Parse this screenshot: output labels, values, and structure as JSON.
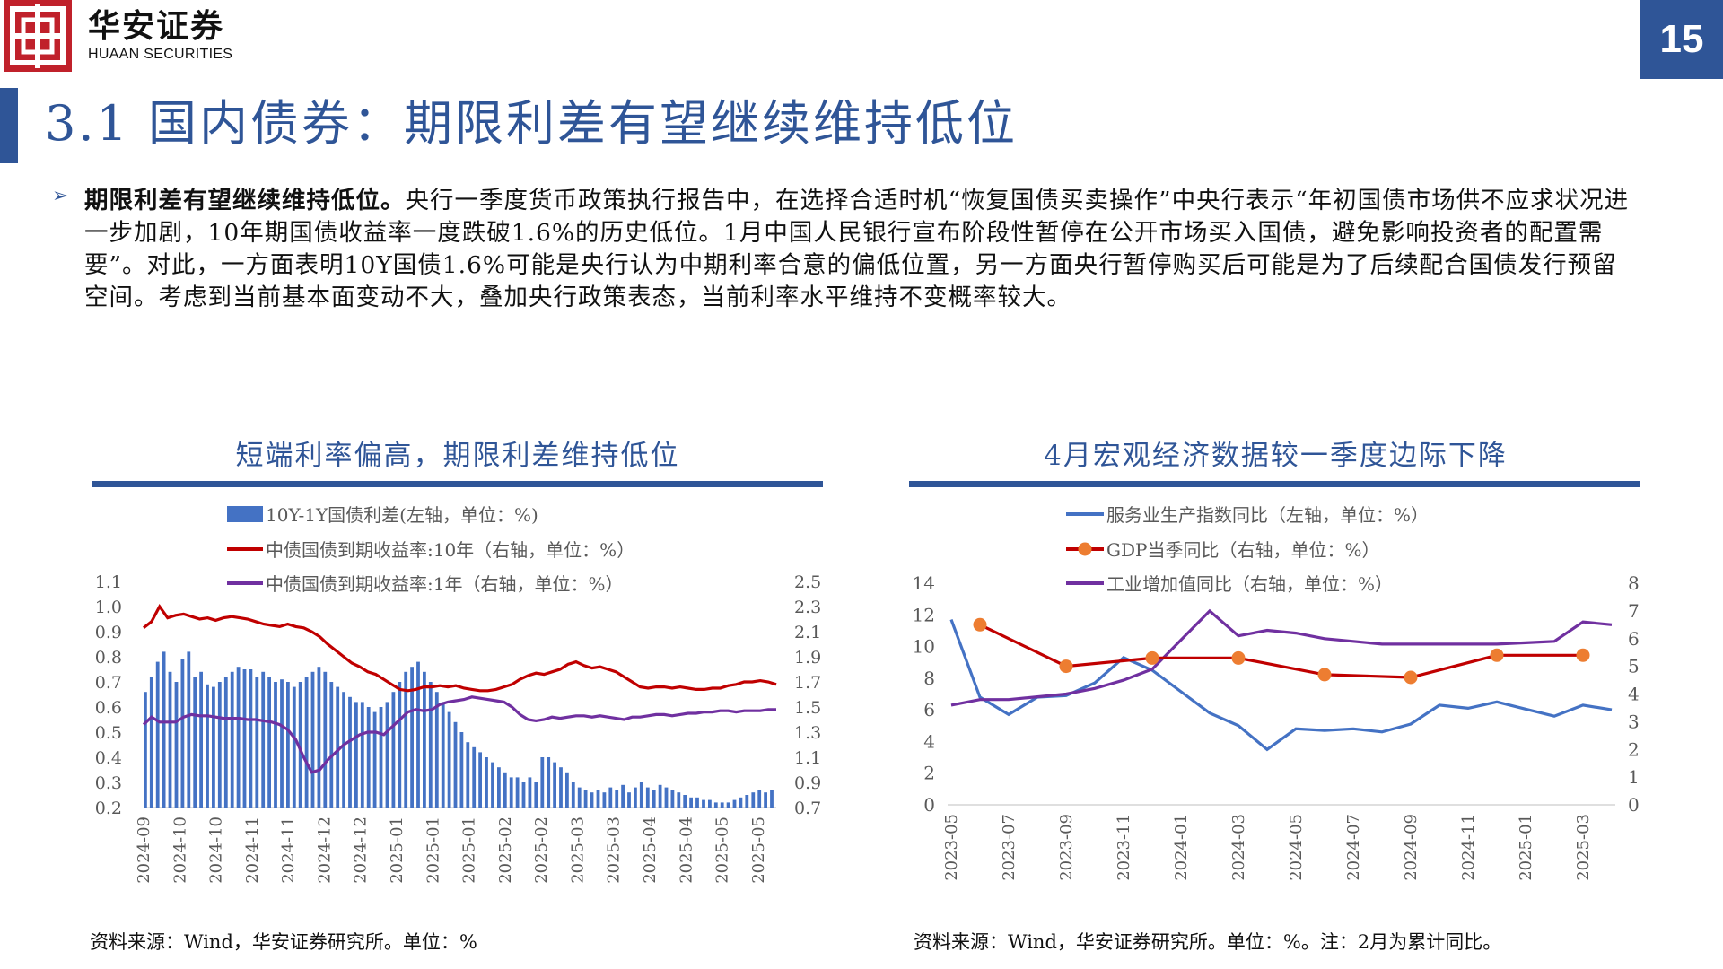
{
  "header": {
    "logo_cn": "华安证券",
    "logo_en": "HUAAN SECURITIES",
    "page_number": "15"
  },
  "title": "3.1 国内债券：期限利差有望继续维持低位",
  "body": {
    "lead": "期限利差有望继续维持低位。",
    "text": "央行一季度货币政策执行报告中，在选择合适时机“恢复国债买卖操作”中央行表示“年初国债市场供不应求状况进一步加剧，10年期国债收益率一度跌破1.6%的历史低位。1月中国人民银行宣布阶段性暂停在公开市场买入国债，避免影响投资者的配置需要”。对此，一方面表明10Y国债1.6%可能是央行认为中期利率合意的偏低位置，另一方面央行暂停购买后可能是为了后续配合国债发行预留空间。考虑到当前基本面变动不大，叠加央行政策表态，当前利率水平维持不变概率较大。"
  },
  "colors": {
    "brand_blue": "#2f5597",
    "brand_red": "#c0212b",
    "bar_blue": "#4472c4",
    "line_red": "#c00000",
    "line_purple": "#7030a0",
    "line_blue": "#4472c4",
    "marker_orange": "#ed7d31"
  },
  "chart_data": [
    {
      "type": "bar+line",
      "title": "短端利率偏高，期限利差维持低位",
      "source": "资料来源：Wind，华安证券研究所。单位：%",
      "legend": [
        "10Y-1Y国债利差(左轴，单位：%)",
        "中债国债到期收益率:10年（右轴，单位：%）",
        "中债国债到期收益率:1年（右轴，单位：%）"
      ],
      "y_left_ticks": [
        "1.1",
        "1.0",
        "0.9",
        "0.8",
        "0.7",
        "0.6",
        "0.5",
        "0.4",
        "0.3",
        "0.2"
      ],
      "y_right_ticks": [
        "2.5",
        "2.3",
        "2.1",
        "1.9",
        "1.7",
        "1.5",
        "1.3",
        "1.1",
        "0.9",
        "0.7"
      ],
      "ylim_left": [
        0.2,
        1.1
      ],
      "ylim_right": [
        0.7,
        2.5
      ],
      "x_ticks": [
        "2024-09",
        "2024-10",
        "2024-10",
        "2024-11",
        "2024-11",
        "2024-12",
        "2024-12",
        "2025-01",
        "2025-01",
        "2025-01",
        "2025-02",
        "2025-02",
        "2025-03",
        "2025-03",
        "2025-04",
        "2025-04",
        "2025-05",
        "2025-05"
      ],
      "series": [
        {
          "name": "10Y-1Y国债利差(左轴，单位：%)",
          "kind": "bar",
          "axis": "left",
          "values": [
            0.66,
            0.72,
            0.78,
            0.82,
            0.74,
            0.7,
            0.79,
            0.82,
            0.72,
            0.74,
            0.69,
            0.68,
            0.7,
            0.72,
            0.74,
            0.76,
            0.75,
            0.75,
            0.72,
            0.74,
            0.72,
            0.7,
            0.71,
            0.7,
            0.68,
            0.7,
            0.72,
            0.74,
            0.76,
            0.74,
            0.7,
            0.68,
            0.66,
            0.64,
            0.62,
            0.62,
            0.6,
            0.58,
            0.6,
            0.62,
            0.66,
            0.7,
            0.74,
            0.76,
            0.78,
            0.74,
            0.7,
            0.66,
            0.62,
            0.58,
            0.54,
            0.5,
            0.46,
            0.44,
            0.42,
            0.4,
            0.38,
            0.36,
            0.34,
            0.32,
            0.32,
            0.3,
            0.32,
            0.3,
            0.4,
            0.4,
            0.38,
            0.36,
            0.34,
            0.3,
            0.28,
            0.27,
            0.26,
            0.27,
            0.26,
            0.28,
            0.27,
            0.29,
            0.26,
            0.28,
            0.3,
            0.28,
            0.27,
            0.29,
            0.28,
            0.27,
            0.26,
            0.25,
            0.24,
            0.24,
            0.23,
            0.23,
            0.22,
            0.22,
            0.22,
            0.23,
            0.24,
            0.25,
            0.26,
            0.27,
            0.26,
            0.27
          ]
        },
        {
          "name": "中债国债到期收益率:10年（右轴，单位：%）",
          "kind": "line",
          "axis": "right",
          "values": [
            2.13,
            2.18,
            2.3,
            2.21,
            2.23,
            2.24,
            2.22,
            2.2,
            2.21,
            2.19,
            2.21,
            2.22,
            2.21,
            2.2,
            2.18,
            2.16,
            2.15,
            2.14,
            2.16,
            2.14,
            2.13,
            2.1,
            2.06,
            2.0,
            1.95,
            1.9,
            1.85,
            1.82,
            1.78,
            1.76,
            1.72,
            1.68,
            1.64,
            1.63,
            1.64,
            1.66,
            1.66,
            1.67,
            1.66,
            1.67,
            1.65,
            1.64,
            1.63,
            1.63,
            1.64,
            1.66,
            1.68,
            1.72,
            1.75,
            1.77,
            1.76,
            1.78,
            1.8,
            1.84,
            1.86,
            1.83,
            1.81,
            1.82,
            1.8,
            1.78,
            1.74,
            1.7,
            1.66,
            1.65,
            1.66,
            1.66,
            1.65,
            1.66,
            1.65,
            1.64,
            1.64,
            1.65,
            1.65,
            1.67,
            1.68,
            1.7,
            1.7,
            1.71,
            1.7,
            1.68
          ]
        },
        {
          "name": "中债国债到期收益率:1年（右轴，单位：%）",
          "kind": "line",
          "axis": "right",
          "values": [
            1.36,
            1.42,
            1.38,
            1.38,
            1.38,
            1.42,
            1.44,
            1.43,
            1.43,
            1.42,
            1.41,
            1.41,
            1.41,
            1.4,
            1.4,
            1.39,
            1.38,
            1.36,
            1.32,
            1.24,
            1.1,
            0.98,
            1.0,
            1.08,
            1.14,
            1.2,
            1.24,
            1.28,
            1.3,
            1.3,
            1.28,
            1.34,
            1.4,
            1.46,
            1.48,
            1.47,
            1.48,
            1.52,
            1.54,
            1.55,
            1.56,
            1.58,
            1.57,
            1.56,
            1.55,
            1.54,
            1.5,
            1.44,
            1.4,
            1.39,
            1.4,
            1.42,
            1.41,
            1.42,
            1.43,
            1.43,
            1.42,
            1.43,
            1.42,
            1.41,
            1.4,
            1.42,
            1.42,
            1.43,
            1.44,
            1.44,
            1.43,
            1.44,
            1.45,
            1.45,
            1.46,
            1.46,
            1.47,
            1.47,
            1.46,
            1.47,
            1.47,
            1.47,
            1.48,
            1.48
          ]
        }
      ]
    },
    {
      "type": "line",
      "title": "4月宏观经济数据较一季度边际下降",
      "source": "资料来源：Wind，华安证券研究所。单位：%。注：2月为累计同比。",
      "legend": [
        "服务业生产指数同比（左轴，单位：%）",
        "GDP当季同比（右轴，单位：%）",
        "工业增加值同比（右轴，单位：%）"
      ],
      "y_left_ticks": [
        "14",
        "12",
        "10",
        "8",
        "6",
        "4",
        "2",
        "0"
      ],
      "y_right_ticks": [
        "8",
        "7",
        "6",
        "5",
        "4",
        "3",
        "2",
        "1",
        "0"
      ],
      "ylim_left": [
        0,
        14
      ],
      "ylim_right": [
        0,
        8
      ],
      "x_ticks": [
        "2023-05",
        "2023-07",
        "2023-09",
        "2023-11",
        "2024-01",
        "2024-03",
        "2024-05",
        "2024-07",
        "2024-09",
        "2024-11",
        "2025-01",
        "2025-03"
      ],
      "x_months": [
        "2023-05",
        "2023-06",
        "2023-07",
        "2023-08",
        "2023-09",
        "2023-10",
        "2023-11",
        "2023-12",
        "2024-01",
        "2024-02",
        "2024-03",
        "2024-04",
        "2024-05",
        "2024-06",
        "2024-07",
        "2024-08",
        "2024-09",
        "2024-10",
        "2024-11",
        "2024-12",
        "2025-01",
        "2025-02",
        "2025-03",
        "2025-04"
      ],
      "series": [
        {
          "name": "服务业生产指数同比（左轴，单位：%）",
          "axis": "left",
          "values": [
            11.7,
            6.8,
            5.7,
            6.8,
            6.9,
            7.7,
            9.3,
            8.5,
            null,
            5.8,
            5.0,
            3.5,
            4.8,
            4.7,
            4.8,
            4.6,
            5.1,
            6.3,
            6.1,
            6.5,
            null,
            5.6,
            6.3,
            6.0
          ]
        },
        {
          "name": "GDP当季同比（右轴，单位：%）",
          "axis": "right",
          "markers": true,
          "values": [
            null,
            6.5,
            null,
            null,
            5.0,
            null,
            null,
            5.3,
            null,
            null,
            5.3,
            null,
            null,
            4.7,
            null,
            null,
            4.6,
            null,
            null,
            5.4,
            null,
            null,
            5.4,
            null
          ]
        },
        {
          "name": "工业增加值同比（右轴，单位：%）",
          "axis": "right",
          "values": [
            3.6,
            3.8,
            3.8,
            3.9,
            4.0,
            4.2,
            4.5,
            4.9,
            null,
            7.0,
            6.1,
            6.3,
            6.2,
            6.0,
            5.9,
            5.8,
            5.8,
            5.8,
            5.8,
            5.8,
            null,
            5.9,
            6.6,
            6.5
          ]
        }
      ]
    }
  ]
}
